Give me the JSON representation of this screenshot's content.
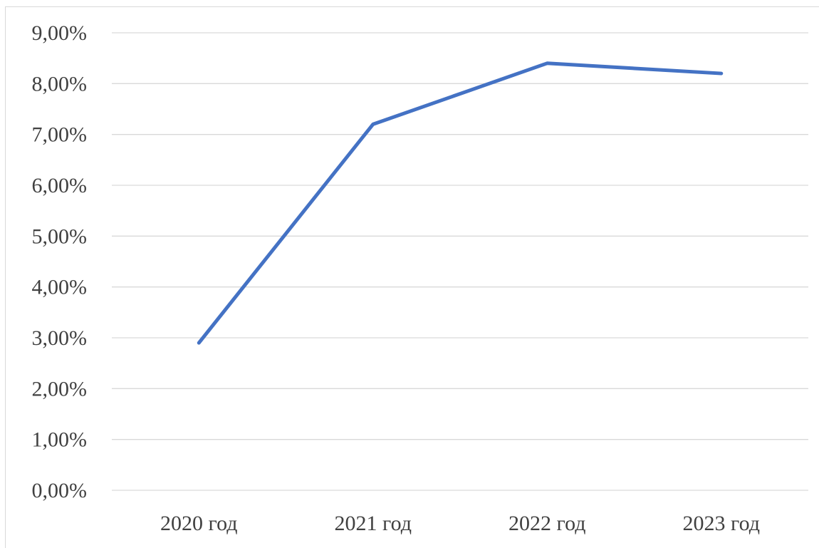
{
  "chart_data": {
    "type": "line",
    "categories": [
      "2020 год",
      "2021 год",
      "2022 год",
      "2023 год"
    ],
    "series": [
      {
        "values": [
          2.9,
          7.2,
          8.4,
          8.2
        ],
        "color": "#4472c4"
      }
    ],
    "y_ticks": [
      "0,00%",
      "1,00%",
      "2,00%",
      "3,00%",
      "4,00%",
      "5,00%",
      "6,00%",
      "7,00%",
      "8,00%",
      "9,00%"
    ],
    "ylim": [
      0,
      9
    ],
    "y_unit": "%",
    "grid": true,
    "legend": "none",
    "colors": {
      "gridline": "#d9d9d9",
      "tick_text": "#404040",
      "frame": "#d9d9d9"
    }
  }
}
